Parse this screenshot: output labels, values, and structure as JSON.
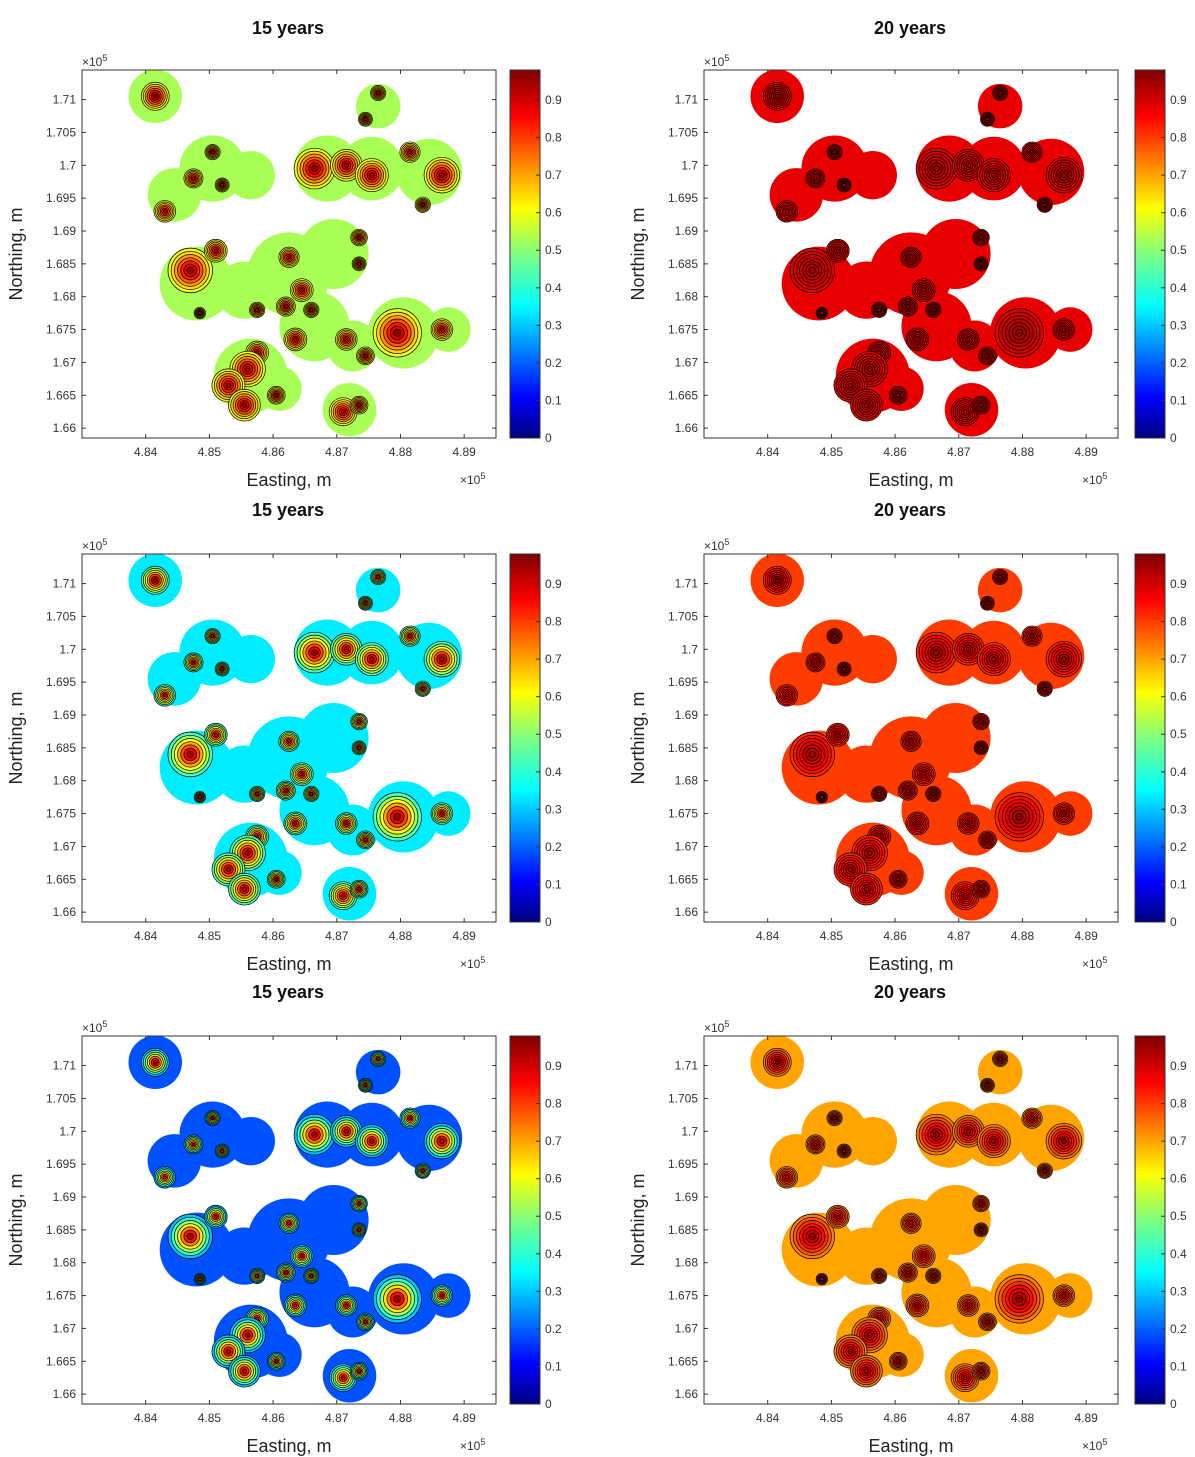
{
  "panel_title_left": "15 years",
  "panel_title_right": "20 years",
  "xlabel": "Easting, m",
  "ylabel": "Northing, m",
  "x_exponent": "×10",
  "y_exponent": "×10",
  "exponent_power": "5",
  "colorbar_ticks": [
    "0",
    "0.1",
    "0.2",
    "0.3",
    "0.4",
    "0.5",
    "0.6",
    "0.7",
    "0.8",
    "0.9"
  ],
  "colormap": "jet",
  "colors": {
    "jet": [
      "#00007f",
      "#0000ff",
      "#007fff",
      "#00ffff",
      "#7fff7f",
      "#ffff00",
      "#ff7f00",
      "#ff0000",
      "#7f0000"
    ],
    "contour_line": "#000000"
  },
  "chart_data": [
    {
      "type": "heatmap",
      "title": "15 years",
      "xlabel": "Easting, m",
      "ylabel": "Northing, m",
      "xlim": [
        4.83,
        4.895
      ],
      "ylim": [
        1.6585,
        1.7145
      ],
      "axis_multiplier": "1e5",
      "xticks": [
        "4.84",
        "4.85",
        "4.86",
        "4.87",
        "4.88",
        "4.89"
      ],
      "yticks": [
        "1.66",
        "1.665",
        "1.67",
        "1.675",
        "1.68",
        "1.685",
        "1.69",
        "1.695",
        "1.7",
        "1.705",
        "1.71"
      ],
      "clim": [
        0,
        0.98
      ],
      "background_value": 0.53,
      "contours": true,
      "grid": false
    },
    {
      "type": "heatmap",
      "title": "20 years",
      "xlabel": "Easting, m",
      "ylabel": "Northing, m",
      "xlim": [
        4.83,
        4.895
      ],
      "ylim": [
        1.6585,
        1.7145
      ],
      "axis_multiplier": "1e5",
      "xticks": [
        "4.84",
        "4.85",
        "4.86",
        "4.87",
        "4.88",
        "4.89"
      ],
      "yticks": [
        "1.66",
        "1.665",
        "1.67",
        "1.675",
        "1.68",
        "1.685",
        "1.69",
        "1.695",
        "1.7",
        "1.705",
        "1.71"
      ],
      "clim": [
        0,
        0.98
      ],
      "background_value": 0.88,
      "contours": true,
      "grid": false
    },
    {
      "type": "heatmap",
      "title": "15 years",
      "xlabel": "Easting, m",
      "ylabel": "Northing, m",
      "xlim": [
        4.83,
        4.895
      ],
      "ylim": [
        1.6585,
        1.7145
      ],
      "axis_multiplier": "1e5",
      "xticks": [
        "4.84",
        "4.85",
        "4.86",
        "4.87",
        "4.88",
        "4.89"
      ],
      "yticks": [
        "1.66",
        "1.665",
        "1.67",
        "1.675",
        "1.68",
        "1.685",
        "1.69",
        "1.695",
        "1.7",
        "1.705",
        "1.71"
      ],
      "clim": [
        0,
        0.98
      ],
      "background_value": 0.35,
      "contours": true,
      "grid": false
    },
    {
      "type": "heatmap",
      "title": "20 years",
      "xlabel": "Easting, m",
      "ylabel": "Northing, m",
      "xlim": [
        4.83,
        4.895
      ],
      "ylim": [
        1.6585,
        1.7145
      ],
      "axis_multiplier": "1e5",
      "xticks": [
        "4.84",
        "4.85",
        "4.86",
        "4.87",
        "4.88",
        "4.89"
      ],
      "yticks": [
        "1.66",
        "1.665",
        "1.67",
        "1.675",
        "1.68",
        "1.685",
        "1.69",
        "1.695",
        "1.7",
        "1.705",
        "1.71"
      ],
      "clim": [
        0,
        0.98
      ],
      "background_value": 0.8,
      "contours": true,
      "grid": false
    },
    {
      "type": "heatmap",
      "title": "15 years",
      "xlabel": "Easting, m",
      "ylabel": "Northing, m",
      "xlim": [
        4.83,
        4.895
      ],
      "ylim": [
        1.6585,
        1.7145
      ],
      "axis_multiplier": "1e5",
      "xticks": [
        "4.84",
        "4.85",
        "4.86",
        "4.87",
        "4.88",
        "4.89"
      ],
      "yticks": [
        "1.66",
        "1.665",
        "1.67",
        "1.675",
        "1.68",
        "1.685",
        "1.69",
        "1.695",
        "1.7",
        "1.705",
        "1.71"
      ],
      "clim": [
        0,
        0.98
      ],
      "background_value": 0.2,
      "contours": true,
      "grid": false
    },
    {
      "type": "heatmap",
      "title": "20 years",
      "xlabel": "Easting, m",
      "ylabel": "Northing, m",
      "xlim": [
        4.83,
        4.895
      ],
      "ylim": [
        1.6585,
        1.7145
      ],
      "axis_multiplier": "1e5",
      "xticks": [
        "4.84",
        "4.85",
        "4.86",
        "4.87",
        "4.88",
        "4.89"
      ],
      "yticks": [
        "1.66",
        "1.665",
        "1.67",
        "1.675",
        "1.68",
        "1.685",
        "1.69",
        "1.695",
        "1.7",
        "1.705",
        "1.71"
      ],
      "clim": [
        0,
        0.98
      ],
      "background_value": 0.7,
      "contours": true,
      "grid": false
    }
  ],
  "blobs": [
    {
      "x": 4.8415,
      "y": 1.7105,
      "r": 0.0022,
      "peak": 0.97
    },
    {
      "x": 4.843,
      "y": 1.693,
      "r": 0.0017,
      "peak": 0.9
    },
    {
      "x": 4.8475,
      "y": 1.698,
      "r": 0.0015,
      "peak": 0.92
    },
    {
      "x": 4.8505,
      "y": 1.702,
      "r": 0.0012,
      "peak": 0.92
    },
    {
      "x": 4.852,
      "y": 1.697,
      "r": 0.0011,
      "peak": 0.92
    },
    {
      "x": 4.847,
      "y": 1.684,
      "r": 0.0035,
      "peak": 0.95
    },
    {
      "x": 4.851,
      "y": 1.687,
      "r": 0.0018,
      "peak": 0.93
    },
    {
      "x": 4.8485,
      "y": 1.6775,
      "r": 0.0009,
      "peak": 0.92
    },
    {
      "x": 4.8575,
      "y": 1.678,
      "r": 0.0012,
      "peak": 0.93
    },
    {
      "x": 4.8625,
      "y": 1.686,
      "r": 0.0016,
      "peak": 0.93
    },
    {
      "x": 4.8645,
      "y": 1.681,
      "r": 0.0018,
      "peak": 0.93
    },
    {
      "x": 4.862,
      "y": 1.6785,
      "r": 0.0015,
      "peak": 0.93
    },
    {
      "x": 4.8635,
      "y": 1.6735,
      "r": 0.0018,
      "peak": 0.93
    },
    {
      "x": 4.866,
      "y": 1.678,
      "r": 0.0012,
      "peak": 0.93
    },
    {
      "x": 4.8735,
      "y": 1.689,
      "r": 0.0013,
      "peak": 0.93
    },
    {
      "x": 4.8735,
      "y": 1.685,
      "r": 0.0011,
      "peak": 0.93
    },
    {
      "x": 4.8665,
      "y": 1.6995,
      "r": 0.0032,
      "peak": 0.96
    },
    {
      "x": 4.8715,
      "y": 1.7,
      "r": 0.0025,
      "peak": 0.95
    },
    {
      "x": 4.8755,
      "y": 1.6985,
      "r": 0.0026,
      "peak": 0.95
    },
    {
      "x": 4.8745,
      "y": 1.707,
      "r": 0.0011,
      "peak": 0.92
    },
    {
      "x": 4.8765,
      "y": 1.711,
      "r": 0.0012,
      "peak": 0.93
    },
    {
      "x": 4.8815,
      "y": 1.702,
      "r": 0.0016,
      "peak": 0.93
    },
    {
      "x": 4.8865,
      "y": 1.6985,
      "r": 0.0028,
      "peak": 0.96
    },
    {
      "x": 4.8835,
      "y": 1.694,
      "r": 0.0012,
      "peak": 0.92
    },
    {
      "x": 4.8795,
      "y": 1.6745,
      "r": 0.0038,
      "peak": 0.96
    },
    {
      "x": 4.8865,
      "y": 1.675,
      "r": 0.0017,
      "peak": 0.93
    },
    {
      "x": 4.8715,
      "y": 1.6735,
      "r": 0.0017,
      "peak": 0.93
    },
    {
      "x": 4.8745,
      "y": 1.671,
      "r": 0.0014,
      "peak": 0.92
    },
    {
      "x": 4.8575,
      "y": 1.6715,
      "r": 0.0018,
      "peak": 0.93
    },
    {
      "x": 4.856,
      "y": 1.669,
      "r": 0.0028,
      "peak": 0.95
    },
    {
      "x": 4.853,
      "y": 1.6665,
      "r": 0.0026,
      "peak": 0.95
    },
    {
      "x": 4.8555,
      "y": 1.6635,
      "r": 0.0025,
      "peak": 0.95
    },
    {
      "x": 4.8605,
      "y": 1.665,
      "r": 0.0014,
      "peak": 0.92
    },
    {
      "x": 4.871,
      "y": 1.6625,
      "r": 0.0022,
      "peak": 0.93
    },
    {
      "x": 4.8735,
      "y": 1.6635,
      "r": 0.0014,
      "peak": 0.92
    }
  ],
  "halos": [
    {
      "x": 4.8415,
      "y": 1.7105,
      "r": 0.0042
    },
    {
      "x": 4.8445,
      "y": 1.6955,
      "r": 0.0042
    },
    {
      "x": 4.8505,
      "y": 1.6995,
      "r": 0.0052
    },
    {
      "x": 4.8565,
      "y": 1.6985,
      "r": 0.0038
    },
    {
      "x": 4.848,
      "y": 1.682,
      "r": 0.0058
    },
    {
      "x": 4.8555,
      "y": 1.681,
      "r": 0.0045
    },
    {
      "x": 4.8625,
      "y": 1.6835,
      "r": 0.0065
    },
    {
      "x": 4.8695,
      "y": 1.6865,
      "r": 0.0055
    },
    {
      "x": 4.8665,
      "y": 1.6755,
      "r": 0.0055
    },
    {
      "x": 4.8685,
      "y": 1.6995,
      "r": 0.0052
    },
    {
      "x": 4.8755,
      "y": 1.6995,
      "r": 0.005
    },
    {
      "x": 4.8765,
      "y": 1.709,
      "r": 0.0035
    },
    {
      "x": 4.8845,
      "y": 1.699,
      "r": 0.0052
    },
    {
      "x": 4.8805,
      "y": 1.6745,
      "r": 0.0056
    },
    {
      "x": 4.8875,
      "y": 1.675,
      "r": 0.0035
    },
    {
      "x": 4.8725,
      "y": 1.6725,
      "r": 0.004
    },
    {
      "x": 4.8565,
      "y": 1.668,
      "r": 0.0058
    },
    {
      "x": 4.861,
      "y": 1.666,
      "r": 0.0035
    },
    {
      "x": 4.872,
      "y": 1.6628,
      "r": 0.0042
    }
  ]
}
